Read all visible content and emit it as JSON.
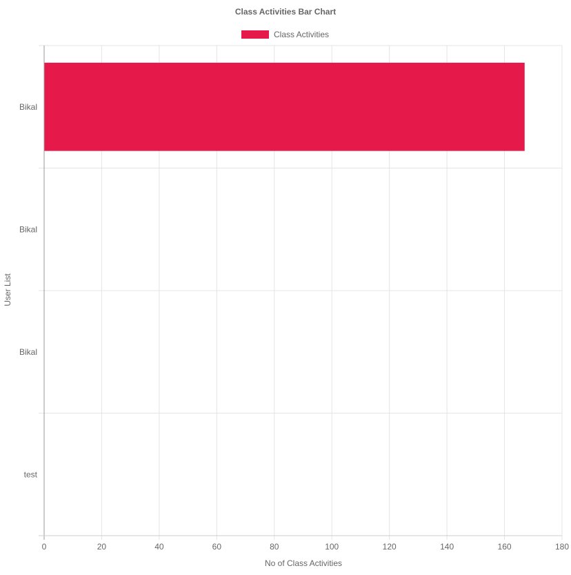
{
  "chart_data": {
    "type": "bar",
    "orientation": "horizontal",
    "title": "Class Activities Bar Chart",
    "xlabel": "No of Class Activities",
    "ylabel": "User List",
    "categories": [
      "Bikal",
      "Bikal",
      "Bikal",
      "test"
    ],
    "series": [
      {
        "name": "Class Activities",
        "color": "#e6194b",
        "values": [
          167,
          0,
          0,
          0
        ]
      }
    ],
    "xlim": [
      0,
      180
    ],
    "x_ticks": [
      0,
      20,
      40,
      60,
      80,
      100,
      120,
      140,
      160,
      180
    ],
    "grid": true,
    "legend_position": "top"
  }
}
